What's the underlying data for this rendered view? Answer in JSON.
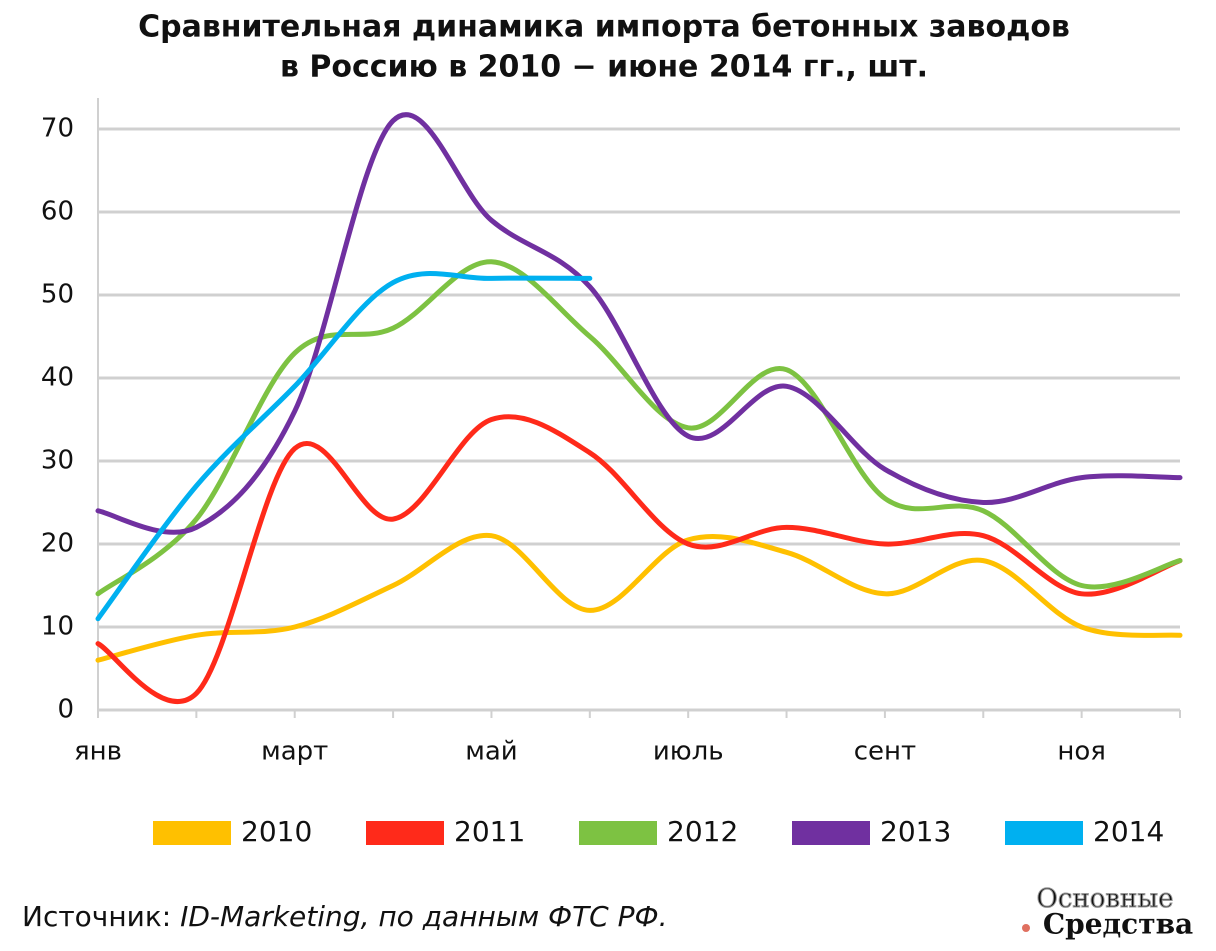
{
  "chart_data": {
    "type": "line",
    "title": [
      "Сравнительная динамика импорта бетонных заводов",
      "в Россию в 2010 − июне 2014 гг., шт."
    ],
    "categories": [
      "янв",
      null,
      "март",
      null,
      "май",
      null,
      "июль",
      null,
      "сент",
      null,
      "ноя",
      null
    ],
    "series": [
      {
        "name": "2010",
        "color": "#ffc000",
        "values": [
          6,
          9,
          10,
          15,
          21,
          12,
          20.5,
          19,
          14,
          18,
          10,
          9
        ]
      },
      {
        "name": "2011",
        "color": "#ff2a1a",
        "values": [
          8,
          2,
          31.5,
          23,
          35,
          31,
          20,
          22,
          20,
          21,
          14,
          18
        ]
      },
      {
        "name": "2012",
        "color": "#7dc242",
        "values": [
          14,
          23,
          43,
          46,
          54,
          45,
          34,
          41,
          25.5,
          24,
          15,
          18
        ]
      },
      {
        "name": "2013",
        "color": "#7030a0",
        "values": [
          24,
          22,
          36,
          71,
          59,
          51,
          33,
          39,
          29,
          25,
          28,
          28
        ]
      },
      {
        "name": "2014",
        "color": "#00b0f0",
        "values": [
          11,
          27,
          39,
          51.5,
          52,
          52,
          null,
          null,
          null,
          null,
          null,
          null
        ]
      }
    ],
    "ylim": [
      0,
      70
    ],
    "yticks": [
      0,
      10,
      20,
      30,
      40,
      50,
      60,
      70
    ],
    "grid": true,
    "source": {
      "label": "Источник:",
      "text": "ID-Marketing, по данным ФТС РФ."
    },
    "logo": [
      "Основные",
      "Средства"
    ]
  }
}
